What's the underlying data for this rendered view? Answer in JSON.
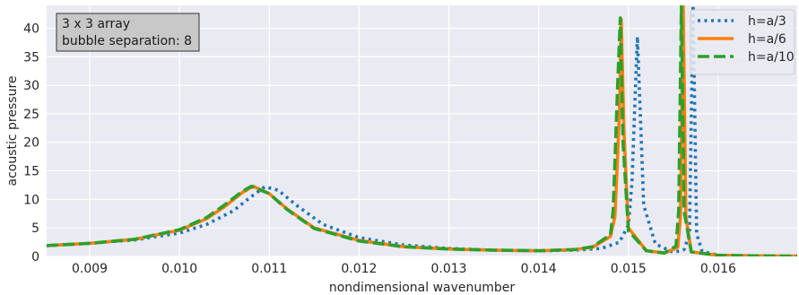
{
  "chart_data": {
    "type": "line",
    "title": "",
    "xlabel": "nondimensional wavenumber",
    "ylabel": "acoustic pressure",
    "xlim": [
      0.00852,
      0.01688
    ],
    "ylim": [
      0,
      44
    ],
    "x_ticks": [
      {
        "value": 0.009,
        "label": "0.009"
      },
      {
        "value": 0.01,
        "label": "0.010"
      },
      {
        "value": 0.011,
        "label": "0.011"
      },
      {
        "value": 0.012,
        "label": "0.012"
      },
      {
        "value": 0.013,
        "label": "0.013"
      },
      {
        "value": 0.014,
        "label": "0.014"
      },
      {
        "value": 0.015,
        "label": "0.015"
      },
      {
        "value": 0.016,
        "label": "0.016"
      }
    ],
    "y_ticks": [
      {
        "value": 0,
        "label": "0"
      },
      {
        "value": 5,
        "label": "5"
      },
      {
        "value": 10,
        "label": "10"
      },
      {
        "value": 15,
        "label": "15"
      },
      {
        "value": 20,
        "label": "20"
      },
      {
        "value": 25,
        "label": "25"
      },
      {
        "value": 30,
        "label": "30"
      },
      {
        "value": 35,
        "label": "35"
      },
      {
        "value": 40,
        "label": "40"
      }
    ],
    "grid": true,
    "legend_position": "top-right",
    "annotation": [
      "3 x 3 array",
      "bubble separation: 8"
    ],
    "series": [
      {
        "name": "h=a/3",
        "color": "#1f77b4",
        "style": "dotted",
        "x": [
          0.00852,
          0.009,
          0.0095,
          0.01,
          0.0103,
          0.0106,
          0.0108,
          0.01095,
          0.0111,
          0.0113,
          0.0116,
          0.012,
          0.0125,
          0.013,
          0.0135,
          0.014,
          0.0144,
          0.0147,
          0.0149,
          0.015,
          0.01504,
          0.01507,
          0.0151,
          0.01513,
          0.01517,
          0.0153,
          0.0155,
          0.01562,
          0.01568,
          0.01572,
          0.01576,
          0.01582,
          0.016,
          0.0164,
          0.01688
        ],
        "values": [
          1.9,
          2.3,
          2.9,
          4.1,
          5.6,
          8.0,
          10.5,
          12.2,
          11.6,
          9.0,
          5.6,
          3.3,
          2.0,
          1.4,
          1.1,
          1.0,
          1.1,
          1.4,
          2.5,
          5.5,
          13.0,
          26.0,
          38.5,
          26.0,
          9.0,
          2.2,
          0.7,
          1.2,
          4.0,
          44.0,
          4.0,
          0.9,
          0.2,
          0.1,
          0.05
        ]
      },
      {
        "name": "h=a/6",
        "color": "#ff7f0e",
        "style": "solid",
        "x": [
          0.00852,
          0.009,
          0.0095,
          0.01,
          0.0103,
          0.0105,
          0.0107,
          0.01082,
          0.011,
          0.0112,
          0.0115,
          0.012,
          0.0125,
          0.013,
          0.0135,
          0.014,
          0.0144,
          0.0146,
          0.0148,
          0.01485,
          0.0149,
          0.01492,
          0.01495,
          0.015,
          0.0152,
          0.0154,
          0.01555,
          0.01558,
          0.01561,
          0.01564,
          0.0157,
          0.016,
          0.0164,
          0.01688
        ],
        "values": [
          1.9,
          2.3,
          3.0,
          4.6,
          6.6,
          8.7,
          11.2,
          12.3,
          11.0,
          8.3,
          5.0,
          2.8,
          1.7,
          1.3,
          1.1,
          1.0,
          1.2,
          1.6,
          3.5,
          7.0,
          25.0,
          41.5,
          22.0,
          5.0,
          1.0,
          0.6,
          1.6,
          7.0,
          44.0,
          7.0,
          0.8,
          0.2,
          0.1,
          0.05
        ]
      },
      {
        "name": "h=a/10",
        "color": "#2ca02c",
        "style": "dashed",
        "x": [
          0.00852,
          0.009,
          0.0095,
          0.01,
          0.0103,
          0.0105,
          0.0107,
          0.0108,
          0.011,
          0.0112,
          0.0115,
          0.012,
          0.0125,
          0.013,
          0.0135,
          0.014,
          0.0144,
          0.0146,
          0.0148,
          0.01483,
          0.01488,
          0.01491,
          0.01494,
          0.015,
          0.0152,
          0.0154,
          0.01553,
          0.01556,
          0.01559,
          0.01562,
          0.0157,
          0.016,
          0.0164,
          0.01688
        ],
        "values": [
          1.9,
          2.3,
          3.0,
          4.7,
          6.8,
          9.0,
          11.4,
          12.3,
          11.0,
          8.2,
          4.9,
          2.7,
          1.7,
          1.3,
          1.1,
          1.0,
          1.2,
          1.7,
          3.8,
          8.0,
          30.0,
          41.8,
          20.0,
          4.5,
          1.0,
          0.6,
          1.8,
          8.0,
          44.0,
          8.0,
          0.8,
          0.2,
          0.1,
          0.05
        ]
      }
    ]
  }
}
